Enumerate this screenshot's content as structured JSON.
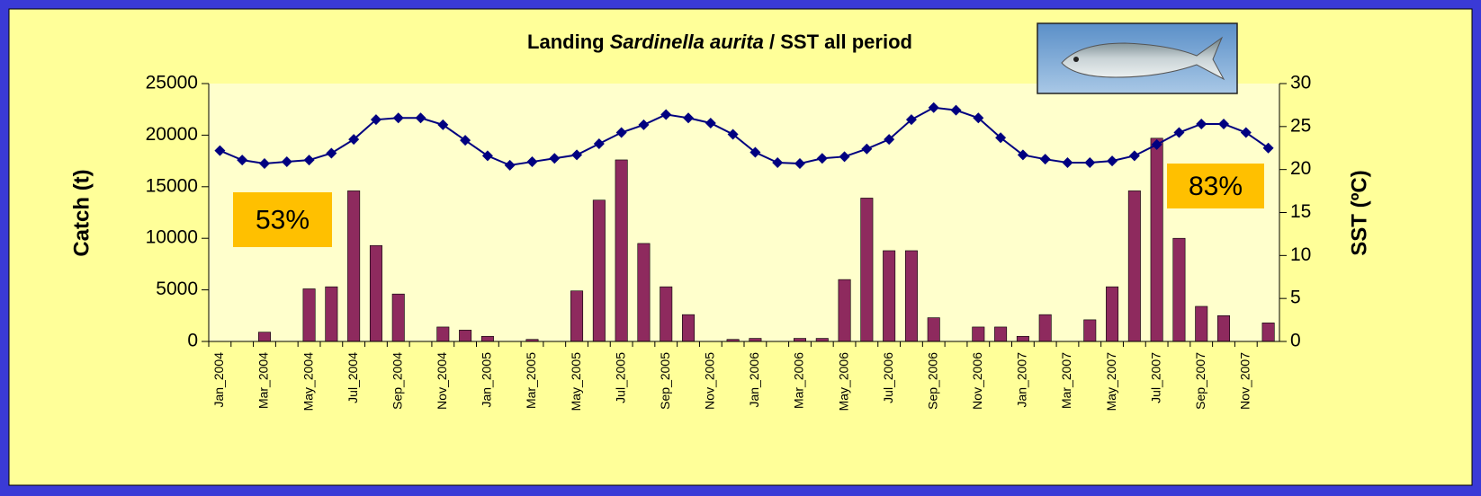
{
  "chart_data": {
    "type": "bar",
    "title_parts": [
      "Landing",
      "Sardinella aurita",
      "/ SST all period"
    ],
    "ylabel": "Catch (t)",
    "y2label": "SST (ºC)",
    "annotations": [
      "53%",
      "83%"
    ],
    "categories": [
      "Jan_2004",
      null,
      "Mar_2004",
      null,
      "May_2004",
      null,
      "Jul_2004",
      null,
      "Sep_2004",
      null,
      "Nov_2004",
      null,
      "Jan_2005",
      null,
      "Mar_2005",
      null,
      "May_2005",
      null,
      "Jul_2005",
      null,
      "Sep_2005",
      null,
      "Nov_2005",
      null,
      "Jan_2006",
      null,
      "Mar_2006",
      null,
      "May_2006",
      null,
      "Jul_2006",
      null,
      "Sep_2006",
      null,
      "Nov_2006",
      null,
      "Jan_2007",
      null,
      "Mar_2007",
      null,
      "May_2007",
      null,
      "Jul_2007",
      null,
      "Sep_2007",
      null,
      "Nov_2007",
      null
    ],
    "series": [
      {
        "name": "Catch",
        "type": "bar",
        "color": "#8e2a5e",
        "values": [
          0,
          0,
          900,
          0,
          5100,
          5300,
          14600,
          9300,
          4600,
          0,
          1400,
          1100,
          500,
          0,
          200,
          0,
          4900,
          13700,
          17600,
          9500,
          5300,
          2600,
          0,
          200,
          300,
          0,
          300,
          300,
          6000,
          13900,
          8800,
          8800,
          2300,
          0,
          1400,
          1400,
          500,
          2600,
          0,
          2100,
          5300,
          14600,
          19700,
          10000,
          3400,
          2500,
          0,
          1800
        ]
      },
      {
        "name": "SST",
        "type": "line",
        "axis": "y2",
        "color": "#000080",
        "values": [
          22.2,
          21.1,
          20.7,
          20.9,
          21.1,
          21.9,
          23.5,
          25.8,
          26.0,
          26.0,
          25.2,
          23.4,
          21.6,
          20.5,
          20.9,
          21.3,
          21.7,
          23.0,
          24.3,
          25.2,
          26.4,
          26.0,
          25.4,
          24.1,
          22.0,
          20.8,
          20.7,
          21.3,
          21.5,
          22.4,
          23.5,
          25.8,
          27.2,
          26.9,
          26.0,
          23.7,
          21.7,
          21.2,
          20.8,
          20.8,
          21.0,
          21.6,
          22.9,
          24.3,
          25.3,
          25.3,
          24.3,
          22.5
        ]
      }
    ],
    "ylim": [
      0,
      25000
    ],
    "yticks": [
      0,
      5000,
      10000,
      15000,
      20000,
      25000
    ],
    "y2lim": [
      0,
      30
    ],
    "y2ticks": [
      0,
      5,
      10,
      15,
      20,
      25,
      30
    ],
    "grid": false
  }
}
